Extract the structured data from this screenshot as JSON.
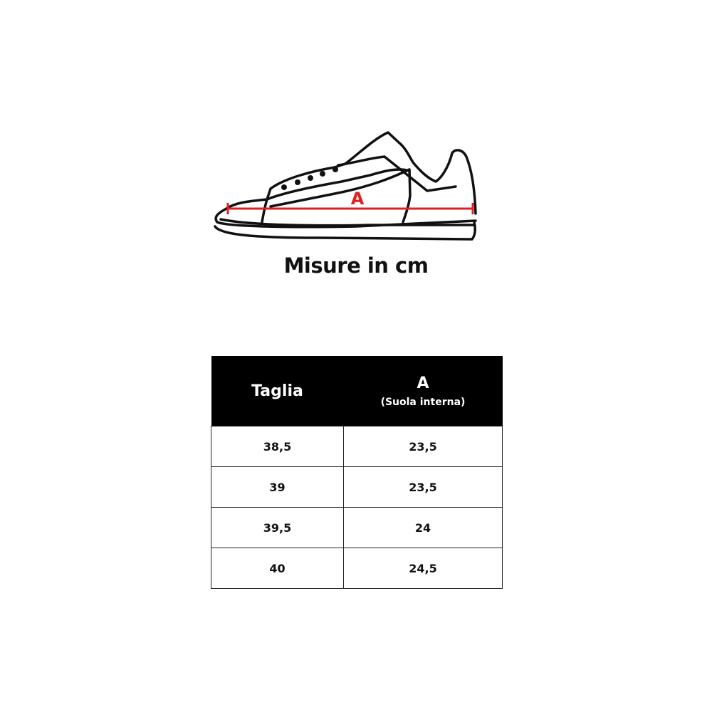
{
  "diagram": {
    "measure_label": "A",
    "measure_color": "#e02020"
  },
  "title": "Misure in cm",
  "table": {
    "headers": {
      "size": "Taglia",
      "a": "A",
      "a_sub": "(Suola interna)"
    },
    "rows": [
      {
        "size": "38,5",
        "a": "23,5"
      },
      {
        "size": "39",
        "a": "23,5"
      },
      {
        "size": "39,5",
        "a": "24"
      },
      {
        "size": "40",
        "a": "24,5"
      }
    ]
  }
}
